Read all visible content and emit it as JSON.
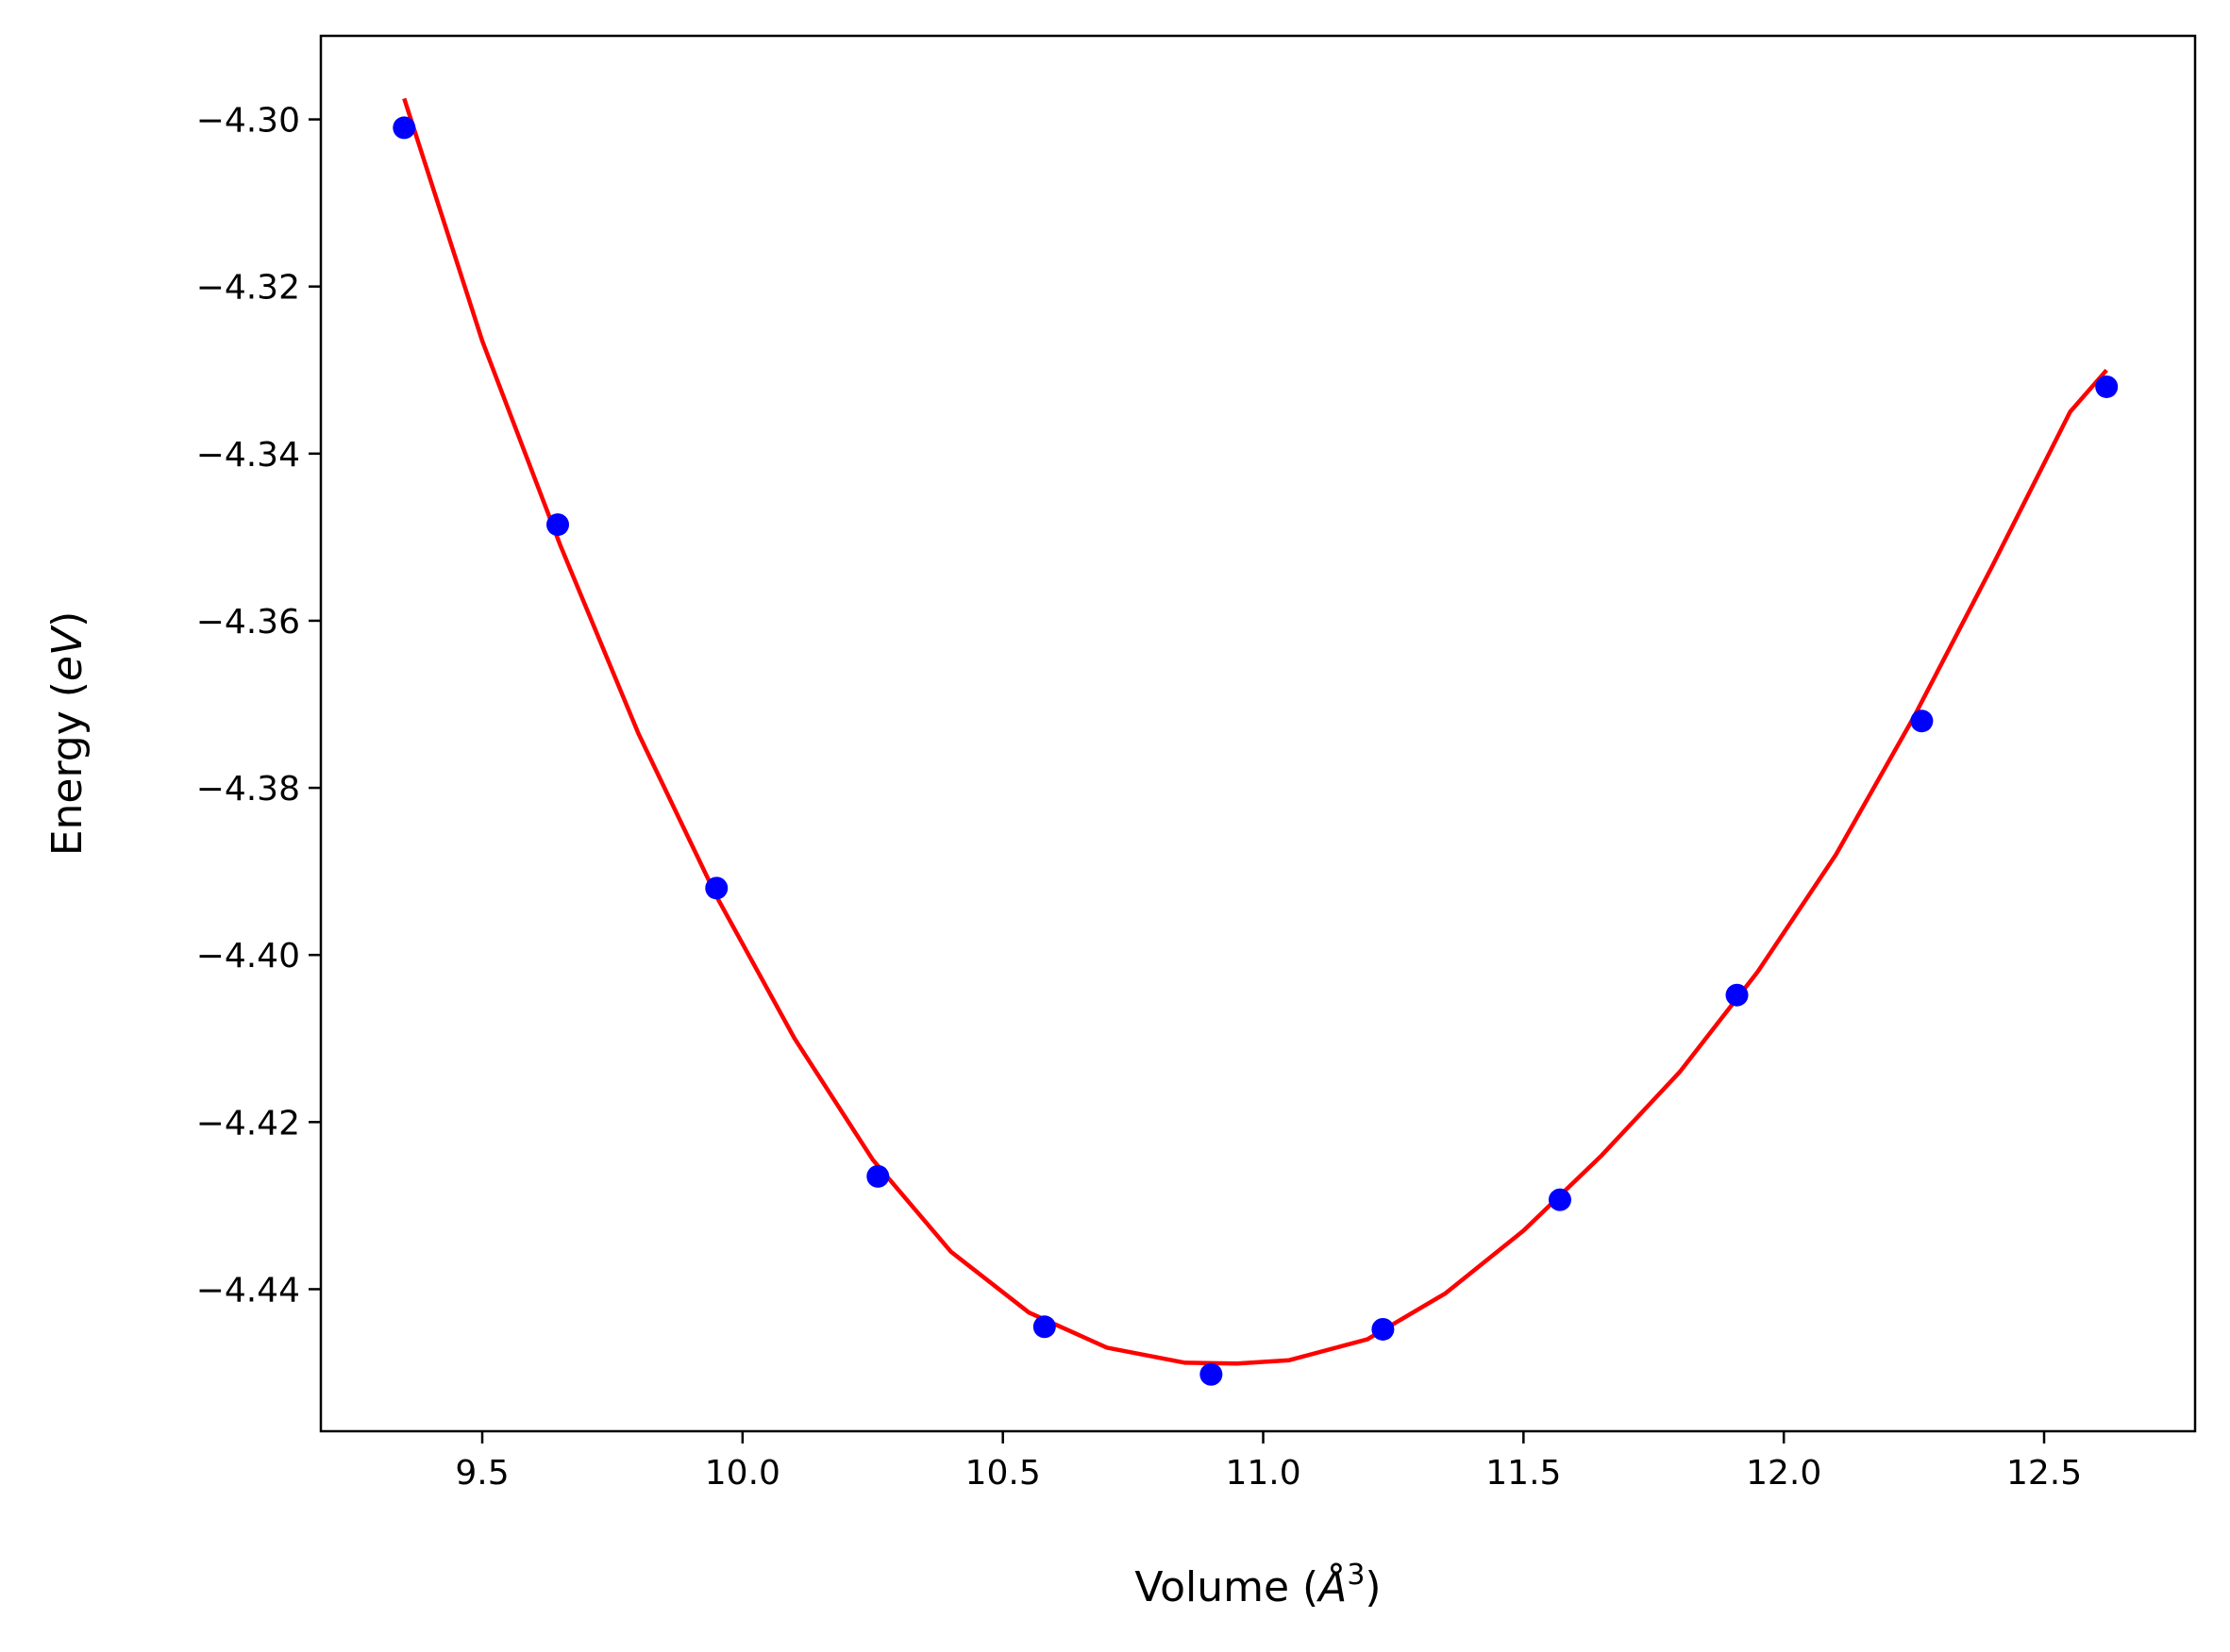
{
  "chart_data": {
    "type": "scatter",
    "title": "",
    "xlabel": {
      "prefix": "Volume (",
      "symbol": "Å",
      "superscript": "3",
      "suffix": ")"
    },
    "ylabel": {
      "prefix": "Energy (",
      "italic": "eV",
      "suffix": ")"
    },
    "xlim": [
      9.19,
      12.79
    ],
    "ylim": [
      -4.457,
      -4.29
    ],
    "x_ticks": [
      9.5,
      10.0,
      10.5,
      11.0,
      11.5,
      12.0,
      12.5
    ],
    "x_tick_labels": [
      "9.5",
      "10.0",
      "10.5",
      "11.0",
      "11.5",
      "12.0",
      "12.5"
    ],
    "y_ticks": [
      -4.3,
      -4.32,
      -4.34,
      -4.36,
      -4.38,
      -4.4,
      -4.42,
      -4.44
    ],
    "y_tick_labels": [
      "−4.30",
      "−4.32",
      "−4.34",
      "−4.36",
      "−4.38",
      "−4.40",
      "−4.42",
      "−4.44"
    ],
    "grid": false,
    "legend": "none",
    "series": [
      {
        "kind": "points",
        "color": "#0000ff",
        "x": [
          9.35,
          9.645,
          9.95,
          10.26,
          10.58,
          10.9,
          11.23,
          11.57,
          11.91,
          12.265,
          12.62
        ],
        "y": [
          -4.301,
          -4.3485,
          -4.392,
          -4.4265,
          -4.4445,
          -4.4502,
          -4.4448,
          -4.4293,
          -4.4048,
          -4.372,
          -4.332
        ]
      },
      {
        "kind": "fit-curve",
        "color": "#ff0000",
        "x": [
          9.35,
          9.5,
          9.65,
          9.8,
          9.95,
          10.1,
          10.25,
          10.4,
          10.55,
          10.7,
          10.85,
          10.95,
          11.05,
          11.2,
          11.35,
          11.5,
          11.65,
          11.8,
          11.95,
          12.1,
          12.25,
          12.4,
          12.55,
          12.62
        ],
        "y": [
          -4.2975,
          -4.3265,
          -4.351,
          -4.3735,
          -4.393,
          -4.41,
          -4.4245,
          -4.4355,
          -4.4428,
          -4.447,
          -4.4488,
          -4.4489,
          -4.4485,
          -4.446,
          -4.4405,
          -4.433,
          -4.424,
          -4.414,
          -4.402,
          -4.388,
          -4.3715,
          -4.3535,
          -4.335,
          -4.33
        ]
      }
    ]
  }
}
